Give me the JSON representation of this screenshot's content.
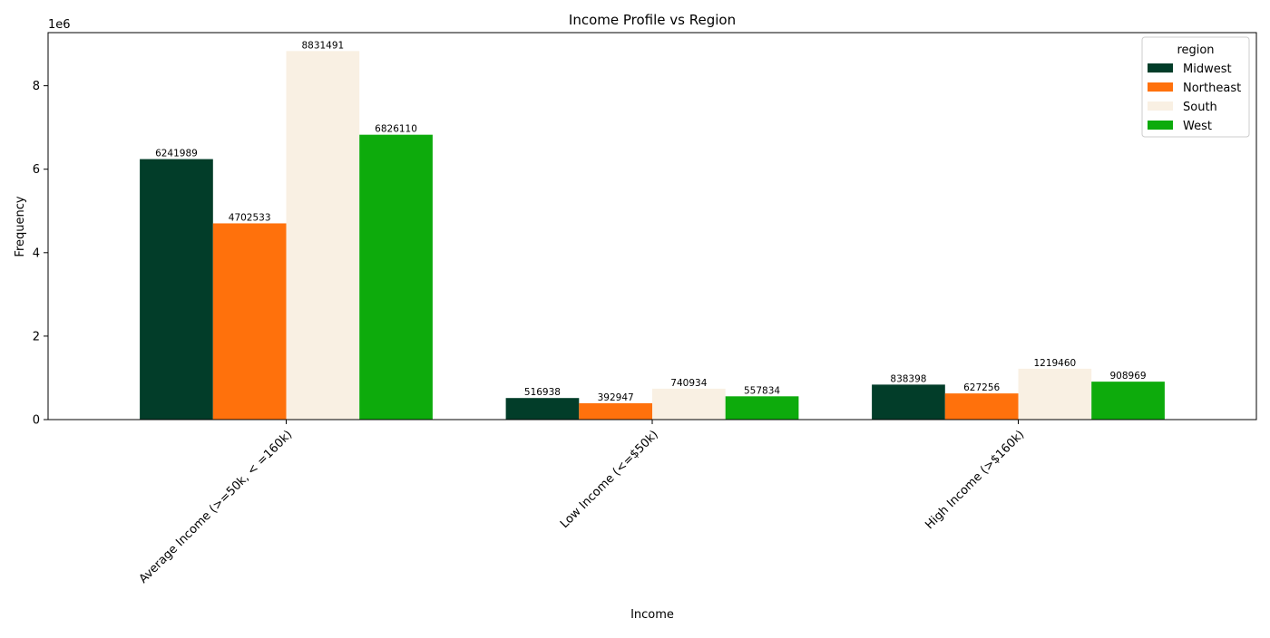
{
  "chart_data": {
    "type": "bar",
    "title": "Income Profile vs Region",
    "xlabel": "Income",
    "ylabel": "Frequency",
    "y_offset_label": "1e6",
    "categories": [
      "Average Income (>=50k, < =160k)",
      "Low Income (<=$50k)",
      "High Income (>$160k)"
    ],
    "series": [
      {
        "name": "Midwest",
        "color": "#023d29",
        "values": [
          6241989,
          516938,
          838398
        ]
      },
      {
        "name": "Northeast",
        "color": "#ff710c",
        "values": [
          4702533,
          392947,
          627256
        ]
      },
      {
        "name": "South",
        "color": "#f9f0e3",
        "values": [
          8831491,
          740934,
          1219460
        ]
      },
      {
        "name": "West",
        "color": "#0dab0c",
        "values": [
          6826110,
          557834,
          908969
        ]
      }
    ],
    "y_ticks": [
      0,
      2,
      4,
      6,
      8
    ],
    "ylim": [
      0,
      9272953
    ],
    "grid": false,
    "legend": {
      "title": "region",
      "placement": "top-right"
    },
    "x_tick_rotation": 45
  }
}
